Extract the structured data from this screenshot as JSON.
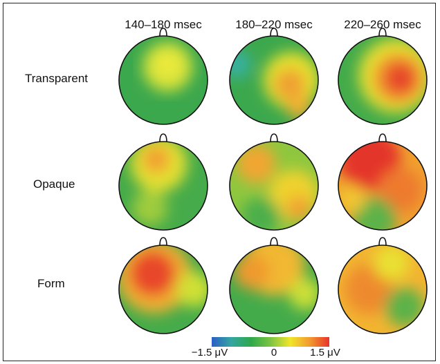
{
  "figure": {
    "columns": [
      "140–180 msec",
      "180–220 msec",
      "220–260 msec"
    ],
    "rows": [
      "Transparent",
      "Opaque",
      "Form"
    ]
  },
  "colorbar": {
    "min_label": "−1.5 μV",
    "mid_label": "0",
    "max_label": "1.5 μV",
    "colors": [
      "#2b5fc7",
      "#35a6a0",
      "#2fa84a",
      "#7cc443",
      "#f0e62a",
      "#f29a2e",
      "#e8332a"
    ]
  },
  "topomaps": {
    "scale": "diverging blue-green-yellow-red",
    "maps": [
      {
        "row": "Transparent",
        "column": "140–180 msec",
        "base": "#3ca84d",
        "blobs": [
          {
            "u": 0.55,
            "v": 0.35,
            "r": 0.28,
            "color": "#d6e23a"
          },
          {
            "u": 0.55,
            "v": 0.32,
            "r": 0.14,
            "color": "#ecea3a"
          }
        ]
      },
      {
        "row": "Transparent",
        "column": "180–220 msec",
        "base": "#3ca84d",
        "blobs": [
          {
            "u": 0.08,
            "v": 0.32,
            "r": 0.16,
            "color": "#37b0a0"
          },
          {
            "u": 0.7,
            "v": 0.5,
            "r": 0.32,
            "color": "#e6e02f"
          },
          {
            "u": 0.68,
            "v": 0.55,
            "r": 0.18,
            "color": "#f0a030"
          },
          {
            "u": 0.78,
            "v": 0.8,
            "r": 0.14,
            "color": "#f2b030"
          }
        ]
      },
      {
        "row": "Transparent",
        "column": "220–260 msec",
        "base": "#44ab4b",
        "blobs": [
          {
            "u": 0.65,
            "v": 0.45,
            "r": 0.42,
            "color": "#e6df30"
          },
          {
            "u": 0.68,
            "v": 0.48,
            "r": 0.28,
            "color": "#f08a2f"
          },
          {
            "u": 0.7,
            "v": 0.48,
            "r": 0.16,
            "color": "#e6402c"
          }
        ]
      },
      {
        "row": "Opaque",
        "column": "140–180 msec",
        "base": "#46ab4a",
        "blobs": [
          {
            "u": 0.45,
            "v": 0.25,
            "r": 0.32,
            "color": "#e3e031"
          },
          {
            "u": 0.42,
            "v": 0.2,
            "r": 0.16,
            "color": "#f2a230"
          },
          {
            "u": 0.35,
            "v": 0.75,
            "r": 0.2,
            "color": "#9fcc3e"
          }
        ]
      },
      {
        "row": "Opaque",
        "column": "180–220 msec",
        "base": "#8ec73f",
        "blobs": [
          {
            "u": 0.3,
            "v": 0.25,
            "r": 0.22,
            "color": "#f2a630"
          },
          {
            "u": 0.72,
            "v": 0.6,
            "r": 0.28,
            "color": "#efd22f"
          },
          {
            "u": 0.78,
            "v": 0.75,
            "r": 0.14,
            "color": "#f2a230"
          },
          {
            "u": 0.35,
            "v": 0.85,
            "r": 0.22,
            "color": "#4caf4c"
          }
        ]
      },
      {
        "row": "Opaque",
        "column": "220–260 msec",
        "base": "#f0a02f",
        "blobs": [
          {
            "u": 0.35,
            "v": 0.2,
            "r": 0.35,
            "color": "#e4342b"
          },
          {
            "u": 0.7,
            "v": 0.55,
            "r": 0.25,
            "color": "#ee7a2e"
          },
          {
            "u": 0.4,
            "v": 0.88,
            "r": 0.25,
            "color": "#5cb24a"
          },
          {
            "u": 0.15,
            "v": 0.65,
            "r": 0.16,
            "color": "#f2c631"
          }
        ]
      },
      {
        "row": "Form",
        "column": "140–180 msec",
        "base": "#46ab4a",
        "blobs": [
          {
            "u": 0.4,
            "v": 0.35,
            "r": 0.42,
            "color": "#f2b031"
          },
          {
            "u": 0.38,
            "v": 0.32,
            "r": 0.26,
            "color": "#e8462c"
          },
          {
            "u": 0.85,
            "v": 0.5,
            "r": 0.2,
            "color": "#cfe036"
          }
        ]
      },
      {
        "row": "Form",
        "column": "180–220 msec",
        "base": "#44ab4b",
        "blobs": [
          {
            "u": 0.5,
            "v": 0.22,
            "r": 0.35,
            "color": "#f2b831"
          },
          {
            "u": 0.25,
            "v": 0.3,
            "r": 0.2,
            "color": "#ef9a2f"
          },
          {
            "u": 0.85,
            "v": 0.55,
            "r": 0.18,
            "color": "#cbdf37"
          }
        ]
      },
      {
        "row": "Form",
        "column": "220–260 msec",
        "base": "#f2b431",
        "blobs": [
          {
            "u": 0.35,
            "v": 0.5,
            "r": 0.28,
            "color": "#ee8a2e"
          },
          {
            "u": 0.75,
            "v": 0.7,
            "r": 0.22,
            "color": "#5cb24a"
          },
          {
            "u": 0.6,
            "v": 0.2,
            "r": 0.2,
            "color": "#e9e033"
          }
        ]
      }
    ]
  }
}
